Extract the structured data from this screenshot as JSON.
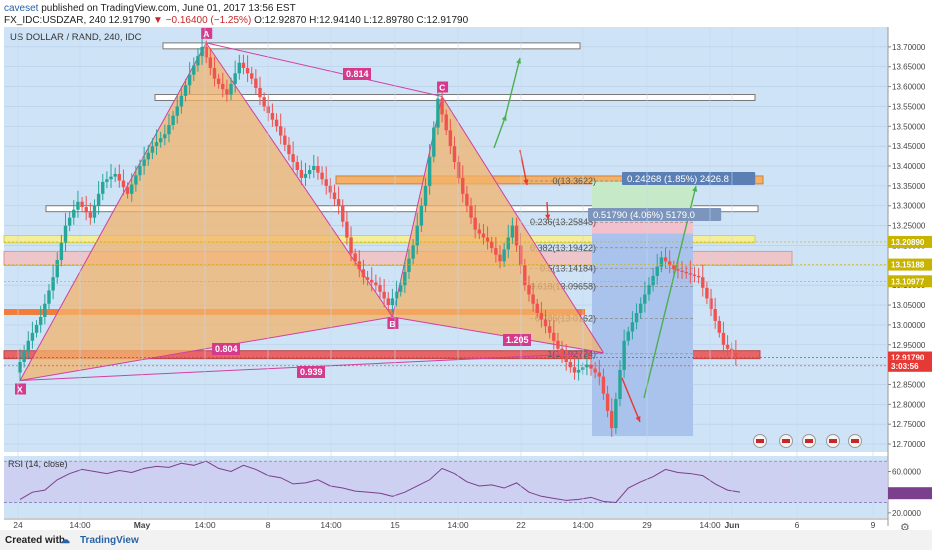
{
  "header": {
    "publisher_user": "caveset",
    "publisher_text": "published on TradingView.com, June 01, 2017 13:56 EST",
    "ticker_line": "FX_IDC:USDZAR, 240",
    "last_price": "12.91790",
    "change": "▼ −0.16400 (−1.25%)",
    "ohlc": "O:12.92870 H:12.94140 L:12.89780 C:12.91790"
  },
  "chart_title": "US DOLLAR / RAND, 240, IDC",
  "footer": {
    "created_with": "Created with",
    "brand": "TradingView"
  },
  "colors": {
    "background": "#cfe3f7",
    "up_candle": "#26a69a",
    "down_candle": "#ef5350",
    "pattern_fill": "#f2b36b",
    "pattern_line": "#d040a0",
    "rsi_line": "#7b3f8c"
  },
  "chart_data": {
    "type": "candlestick",
    "symbol": "USDZAR",
    "timeframe": "240",
    "y_ticks": [
      "13.70000",
      "13.65000",
      "13.60000",
      "13.55000",
      "13.50000",
      "13.45000",
      "13.40000",
      "13.35000",
      "13.30000",
      "13.25000",
      "13.20000",
      "13.15000",
      "13.10000",
      "13.05000",
      "13.00000",
      "12.95000",
      "12.90000",
      "12.85000",
      "12.80000",
      "12.75000",
      "12.70000"
    ],
    "ylim": [
      12.68,
      13.75
    ],
    "x_ticks": [
      "24",
      "14:00",
      "May",
      "14:00",
      "8",
      "14:00",
      "15",
      "14:00",
      "22",
      "14:00",
      "29",
      "14:00",
      "Jun",
      "6",
      "9"
    ],
    "price_labels": [
      {
        "text": "13.20890",
        "value": 13.2089,
        "color": "#c8b400"
      },
      {
        "text": "13.15188",
        "value": 13.15188,
        "color": "#c8b400"
      },
      {
        "text": "13.10977",
        "value": 13.10977,
        "color": "#c8b400"
      },
      {
        "text": "12.91790",
        "value": 12.9179,
        "color": "#e53935"
      },
      {
        "text": "3:03:56",
        "value": 12.897,
        "color": "#e53935"
      }
    ],
    "close_path": [
      [
        0,
        12.88
      ],
      [
        1,
        12.96
      ],
      [
        2,
        13.02
      ],
      [
        3,
        13.12
      ],
      [
        4,
        13.25
      ],
      [
        5,
        13.31
      ],
      [
        6,
        13.27
      ],
      [
        7,
        13.36
      ],
      [
        8,
        13.38
      ],
      [
        9,
        13.33
      ],
      [
        10,
        13.4
      ],
      [
        11,
        13.45
      ],
      [
        12,
        13.48
      ],
      [
        13,
        13.55
      ],
      [
        14,
        13.63
      ],
      [
        15,
        13.7
      ],
      [
        16,
        13.62
      ],
      [
        17,
        13.58
      ],
      [
        18,
        13.66
      ],
      [
        19,
        13.62
      ],
      [
        20,
        13.55
      ],
      [
        21,
        13.5
      ],
      [
        22,
        13.43
      ],
      [
        23,
        13.37
      ],
      [
        24,
        13.4
      ],
      [
        25,
        13.35
      ],
      [
        26,
        13.3
      ],
      [
        27,
        13.18
      ],
      [
        28,
        13.12
      ],
      [
        29,
        13.1
      ],
      [
        30,
        13.05
      ],
      [
        31,
        13.1
      ],
      [
        32,
        13.2
      ],
      [
        33,
        13.35
      ],
      [
        34,
        13.57
      ],
      [
        35,
        13.45
      ],
      [
        36,
        13.33
      ],
      [
        37,
        13.24
      ],
      [
        38,
        13.21
      ],
      [
        39,
        13.16
      ],
      [
        40,
        13.25
      ],
      [
        41,
        13.1
      ],
      [
        42,
        13.03
      ],
      [
        43,
        12.98
      ],
      [
        44,
        12.92
      ],
      [
        45,
        12.88
      ],
      [
        46,
        12.9
      ],
      [
        47,
        12.87
      ],
      [
        48,
        12.74
      ],
      [
        49,
        12.96
      ],
      [
        50,
        13.03
      ],
      [
        51,
        13.1
      ],
      [
        52,
        13.17
      ],
      [
        53,
        13.14
      ],
      [
        54,
        13.13
      ],
      [
        55,
        13.12
      ],
      [
        56,
        13.04
      ],
      [
        57,
        12.95
      ],
      [
        58,
        12.92
      ]
    ],
    "harmonic_points": [
      {
        "label": "X",
        "value": 12.86
      },
      {
        "label": "A",
        "value": 13.71
      },
      {
        "label": "B",
        "value": 13.02
      },
      {
        "label": "C",
        "value": 13.58
      }
    ],
    "ratio_labels": [
      "0.814",
      "0.804",
      "0.939",
      "1.205"
    ],
    "fib_labels": [
      "0(13.3622)",
      "0.236(13.25848)",
      "0.382(13.19422)",
      "0.5(13.14184)",
      "0.618(13.09658)",
      "0.786(13.0162)",
      "1(12.92724)"
    ],
    "measurements": [
      "0.24268 (1.85%) 2426.8",
      "0.51790 (4.06%) 5179.0"
    ],
    "rsi": {
      "label": "RSI (14, close)",
      "ticks": [
        "60.0000",
        "40.0000",
        "20.0000"
      ],
      "ylim": [
        15,
        75
      ],
      "values": [
        [
          0,
          33
        ],
        [
          1,
          40
        ],
        [
          2,
          42
        ],
        [
          3,
          52
        ],
        [
          4,
          58
        ],
        [
          5,
          62
        ],
        [
          6,
          60
        ],
        [
          7,
          58
        ],
        [
          8,
          61
        ],
        [
          9,
          59
        ],
        [
          10,
          63
        ],
        [
          11,
          65
        ],
        [
          12,
          64
        ],
        [
          13,
          68
        ],
        [
          14,
          66
        ],
        [
          15,
          70
        ],
        [
          16,
          63
        ],
        [
          17,
          60
        ],
        [
          18,
          66
        ],
        [
          19,
          62
        ],
        [
          20,
          56
        ],
        [
          21,
          54
        ],
        [
          22,
          48
        ],
        [
          23,
          49
        ],
        [
          24,
          52
        ],
        [
          25,
          46
        ],
        [
          26,
          44
        ],
        [
          27,
          41
        ],
        [
          28,
          40
        ],
        [
          29,
          39
        ],
        [
          30,
          36
        ],
        [
          31,
          40
        ],
        [
          32,
          46
        ],
        [
          33,
          52
        ],
        [
          34,
          63
        ],
        [
          35,
          58
        ],
        [
          36,
          50
        ],
        [
          37,
          46
        ],
        [
          38,
          47
        ],
        [
          39,
          44
        ],
        [
          40,
          49
        ],
        [
          41,
          40
        ],
        [
          42,
          36
        ],
        [
          43,
          34
        ],
        [
          44,
          32
        ],
        [
          45,
          33
        ],
        [
          46,
          35
        ],
        [
          47,
          31
        ],
        [
          48,
          30
        ],
        [
          49,
          44
        ],
        [
          50,
          50
        ],
        [
          51,
          55
        ],
        [
          52,
          62
        ],
        [
          53,
          59
        ],
        [
          54,
          58
        ],
        [
          55,
          56
        ],
        [
          56,
          48
        ],
        [
          57,
          42
        ],
        [
          58,
          40
        ]
      ]
    }
  }
}
